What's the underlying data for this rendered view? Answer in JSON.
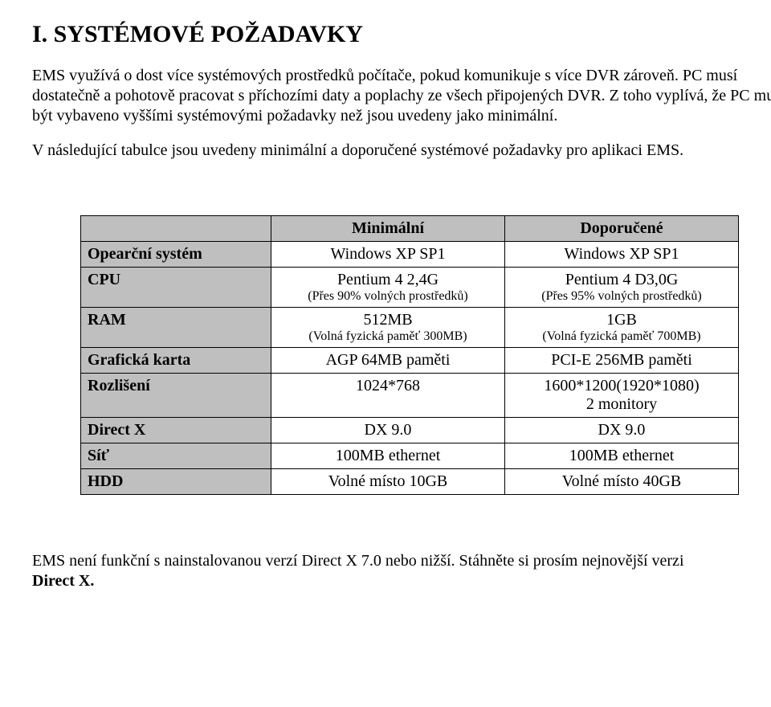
{
  "heading": "I. SYSTÉMOVÉ POŽADAVKY",
  "para1": "EMS využívá o dost více systémových prostředků počítače, pokud komunikuje s více DVR zároveň. PC musí dostatečně a pohotově pracovat s příchozími daty a poplachy ze všech připojených DVR. Z toho vyplívá, že PC musí být vybaveno vyššími systémovými požadavky než jsou uvedeny jako minimální.",
  "para2": "V následující tabulce jsou uvedeny minimální a doporučené systémové požadavky pro aplikaci EMS.",
  "table": {
    "col_blank": "",
    "col_min": "Minimální",
    "col_rec": "Doporučené",
    "rows": {
      "os": {
        "label": "Opearční systém",
        "min": "Windows XP SP1",
        "rec": "Windows XP SP1"
      },
      "cpu": {
        "label": "CPU",
        "min": "Pentium 4 2,4G",
        "min_sub": "(Přes 90% volných prostředků)",
        "rec": "Pentium 4 D3,0G",
        "rec_sub": "(Přes 95% volných prostředků)"
      },
      "ram": {
        "label": "RAM",
        "min": "512MB",
        "min_sub": "(Volná fyzická paměť 300MB)",
        "rec": "1GB",
        "rec_sub": "(Volná fyzická paměť 700MB)"
      },
      "gpu": {
        "label": "Grafická karta",
        "min": "AGP 64MB paměti",
        "rec": "PCI-E 256MB paměti"
      },
      "res": {
        "label": "Rozlišení",
        "min": "1024*768",
        "rec": "1600*1200(1920*1080)",
        "rec_sub": "2 monitory"
      },
      "dx": {
        "label": "Direct X",
        "min": "DX 9.0",
        "rec": "DX 9.0"
      },
      "net": {
        "label": "Síť",
        "min": "100MB ethernet",
        "rec": "100MB ethernet"
      },
      "hdd": {
        "label": "HDD",
        "min": "Volné místo 10GB",
        "rec": "Volné místo 40GB"
      }
    }
  },
  "footer_a": "EMS není funkční s nainstalovanou verzí Direct X 7.0 nebo nižší. Stáhněte si prosím nejnovější verzi ",
  "footer_b": "Direct X."
}
